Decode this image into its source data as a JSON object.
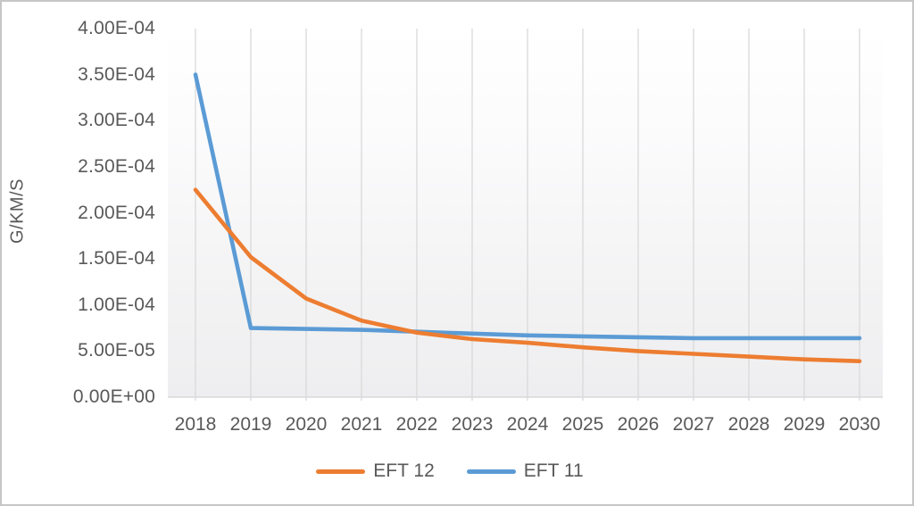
{
  "chart_data": {
    "type": "line",
    "title": "",
    "xlabel": "",
    "ylabel": "G/KM/S",
    "x": [
      2018,
      2019,
      2020,
      2021,
      2022,
      2023,
      2024,
      2025,
      2026,
      2027,
      2028,
      2029,
      2030
    ],
    "x_tick_labels": [
      "2018",
      "2019",
      "2020",
      "2021",
      "2022",
      "2023",
      "2024",
      "2025",
      "2026",
      "2027",
      "2028",
      "2029",
      "2030"
    ],
    "y_tick_labels": [
      "0.00E+00",
      "5.00E-05",
      "1.00E-04",
      "1.50E-04",
      "2.00E-04",
      "2.50E-04",
      "3.00E-04",
      "3.50E-04",
      "4.00E-04"
    ],
    "ylim": [
      0,
      0.0004
    ],
    "grid": "vertical-only",
    "legend_position": "bottom-center",
    "series": [
      {
        "name": "EFT 12",
        "color": "#ED7D31",
        "values": [
          0.000225,
          0.000152,
          0.000107,
          8.3e-05,
          7e-05,
          6.3e-05,
          5.9e-05,
          5.4e-05,
          5e-05,
          4.7e-05,
          4.4e-05,
          4.1e-05,
          3.9e-05
        ]
      },
      {
        "name": "EFT 11",
        "color": "#5B9BD5",
        "values": [
          0.00035,
          7.5e-05,
          7.4e-05,
          7.3e-05,
          7.1e-05,
          6.9e-05,
          6.7e-05,
          6.6e-05,
          6.5e-05,
          6.4e-05,
          6.4e-05,
          6.4e-05,
          6.4e-05
        ]
      }
    ]
  },
  "colors": {
    "text": "#595959",
    "gridline": "#d9d9d9",
    "axis_line": "#d9d9d9",
    "plot_bg_top": "#ffffff",
    "plot_bg_bottom": "#eeeef0",
    "frame_border": "#c6c6c6"
  }
}
